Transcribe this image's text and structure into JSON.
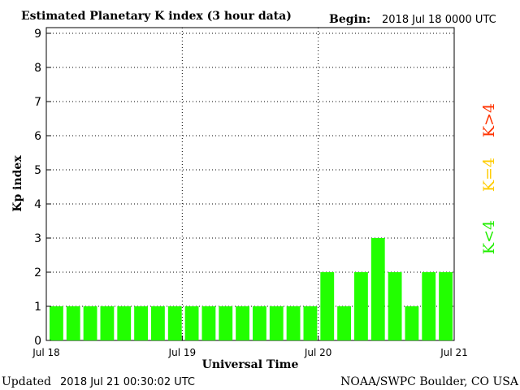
{
  "header": {
    "title": "Estimated Planetary K index (3 hour data)",
    "begin_label": "Begin:",
    "begin_value": "2018 Jul 18 0000 UTC"
  },
  "footer": {
    "updated_label": "Updated",
    "updated_value": "2018 Jul 21 00:30:02 UTC",
    "source": "NOAA/SWPC Boulder, CO USA"
  },
  "legend": {
    "items": [
      {
        "label": "K>4",
        "color": "#ff3300"
      },
      {
        "label": "K=4",
        "color": "#ffcc00"
      },
      {
        "label": "K<4",
        "color": "#22ee00"
      }
    ]
  },
  "colors": {
    "bar": "#22ff00",
    "bar_edge": "#000000",
    "grid": "#000000",
    "axis": "#000000"
  },
  "chart_data": {
    "type": "bar",
    "ylabel": "Kp index",
    "xlabel": "Universal Time",
    "ylim": [
      0,
      9
    ],
    "yticks": [
      0,
      1,
      2,
      3,
      4,
      5,
      6,
      7,
      8,
      9
    ],
    "xtick_labels": [
      "Jul 18",
      "Jul 19",
      "Jul 20",
      "Jul 21"
    ],
    "grid": true,
    "categories": [
      "Jul 18 00",
      "Jul 18 03",
      "Jul 18 06",
      "Jul 18 09",
      "Jul 18 12",
      "Jul 18 15",
      "Jul 18 18",
      "Jul 18 21",
      "Jul 19 00",
      "Jul 19 03",
      "Jul 19 06",
      "Jul 19 09",
      "Jul 19 12",
      "Jul 19 15",
      "Jul 19 18",
      "Jul 19 21",
      "Jul 20 00",
      "Jul 20 03",
      "Jul 20 06",
      "Jul 20 09",
      "Jul 20 12",
      "Jul 20 15",
      "Jul 20 18",
      "Jul 20 21"
    ],
    "values": [
      1,
      1,
      1,
      1,
      1,
      1,
      1,
      1,
      1,
      1,
      1,
      1,
      1,
      1,
      1,
      1,
      2,
      1,
      2,
      3,
      2,
      1,
      2,
      2
    ]
  }
}
